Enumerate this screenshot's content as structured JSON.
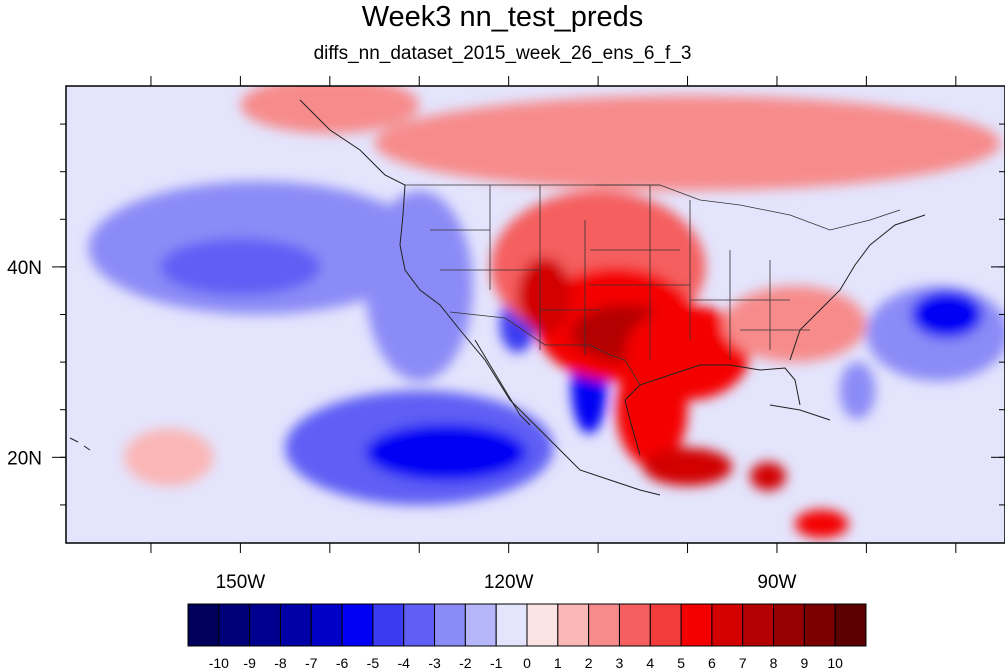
{
  "title": "Week3 nn_test_preds",
  "subtitle": "diffs_nn_dataset_2015_week_26_ens_6_f_3",
  "map": {
    "lon_range": [
      -169.5,
      -64.5
    ],
    "lat_range": [
      11,
      59
    ],
    "lon_labels": [
      {
        "lon": -150,
        "text": "150W"
      },
      {
        "lon": -120,
        "text": "120W"
      },
      {
        "lon": -90,
        "text": "90W"
      }
    ],
    "lat_labels": [
      {
        "lat": 40,
        "text": "40N"
      },
      {
        "lat": 20,
        "text": "20N"
      }
    ],
    "major_lon_ticks": [
      -160,
      -150,
      -140,
      -130,
      -120,
      -110,
      -100,
      -90,
      -80,
      -70
    ],
    "minor_lat_ticks": [
      15,
      20,
      25,
      30,
      35,
      40,
      45,
      50,
      55
    ],
    "background_value": -1,
    "anomalies": [
      {
        "name": "north-pacific-cold",
        "lon": -148,
        "lat": 42,
        "rx": 19,
        "ry": 7,
        "value": -3
      },
      {
        "name": "north-pacific-cold-core",
        "lon": -150,
        "lat": 40,
        "rx": 9,
        "ry": 3,
        "value": -4
      },
      {
        "name": "pacific-coastal-cold",
        "lon": -130,
        "lat": 38,
        "rx": 6,
        "ry": 10,
        "value": -3
      },
      {
        "name": "subtropical-pacific-cold",
        "lon": -130,
        "lat": 21,
        "rx": 15,
        "ry": 6,
        "value": -4
      },
      {
        "name": "subtropical-pacific-cold-core",
        "lon": -127,
        "lat": 20.5,
        "rx": 9,
        "ry": 3,
        "value": -6
      },
      {
        "name": "gulf-of-california-cold",
        "lon": -111,
        "lat": 27.5,
        "rx": 2,
        "ry": 5,
        "value": -6
      },
      {
        "name": "california-coast-cold",
        "lon": -119,
        "lat": 34,
        "rx": 2,
        "ry": 3,
        "value": -5
      },
      {
        "name": "atlantic-cold",
        "lon": -72,
        "lat": 33,
        "rx": 8,
        "ry": 5,
        "value": -3
      },
      {
        "name": "atlantic-cold-core",
        "lon": -71,
        "lat": 35,
        "rx": 4,
        "ry": 2.5,
        "value": -6
      },
      {
        "name": "florida-cold",
        "lon": -81,
        "lat": 27,
        "rx": 2,
        "ry": 3,
        "value": -3
      },
      {
        "name": "canada-warm",
        "lon": -100,
        "lat": 53,
        "rx": 35,
        "ry": 5,
        "value": 2
      },
      {
        "name": "alaska-warm",
        "lon": -140,
        "lat": 57,
        "rx": 10,
        "ry": 3,
        "value": 2
      },
      {
        "name": "western-us-warm",
        "lon": -110,
        "lat": 40,
        "rx": 12,
        "ry": 8,
        "value": 3
      },
      {
        "name": "southwest-warm",
        "lon": -108,
        "lat": 34,
        "rx": 9,
        "ry": 6,
        "value": 5
      },
      {
        "name": "southwest-warm-core",
        "lon": -107,
        "lat": 33,
        "rx": 6,
        "ry": 3,
        "value": 7
      },
      {
        "name": "great-basin-warm",
        "lon": -116,
        "lat": 37,
        "rx": 3,
        "ry": 4,
        "value": 6
      },
      {
        "name": "texas-warm",
        "lon": -100,
        "lat": 31,
        "rx": 7,
        "ry": 5,
        "value": 5
      },
      {
        "name": "mexico-warm",
        "lon": -104,
        "lat": 25,
        "rx": 4,
        "ry": 6,
        "value": 5
      },
      {
        "name": "southern-mexico-warm",
        "lon": -100,
        "lat": 19,
        "rx": 5,
        "ry": 2,
        "value": 6
      },
      {
        "name": "southeast-us-warm",
        "lon": -88,
        "lat": 34,
        "rx": 8,
        "ry": 4,
        "value": 2
      },
      {
        "name": "central-america-warm",
        "lon": -91,
        "lat": 18,
        "rx": 2,
        "ry": 1.5,
        "value": 6
      },
      {
        "name": "caribbean-warm",
        "lon": -85,
        "lat": 13,
        "rx": 3,
        "ry": 1.5,
        "value": 5
      },
      {
        "name": "hawaii-warm",
        "lon": -158,
        "lat": 20,
        "rx": 5,
        "ry": 3,
        "value": 1
      }
    ]
  },
  "colorbar": {
    "labels": [
      "-10",
      "-9",
      "-8",
      "-7",
      "-6",
      "-5",
      "-4",
      "-3",
      "-2",
      "-1",
      "0",
      "1",
      "2",
      "3",
      "4",
      "5",
      "6",
      "7",
      "8",
      "9",
      "10"
    ],
    "colors": [
      "#00005a",
      "#000078",
      "#00008f",
      "#0000a6",
      "#0000c6",
      "#0000f4",
      "#3b3bf2",
      "#5f5ff5",
      "#8b8bf7",
      "#b6b6fb",
      "#e4e4fd",
      "#fde4e4",
      "#fbb6b6",
      "#f78b8b",
      "#f55f5f",
      "#f23b3b",
      "#f40000",
      "#d20000",
      "#b40000",
      "#960000",
      "#7a0000",
      "#5a0000"
    ]
  }
}
